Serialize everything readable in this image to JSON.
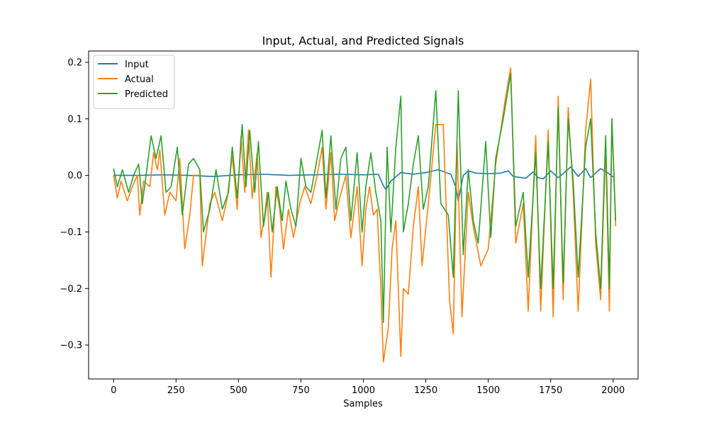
{
  "chart_data": {
    "type": "line",
    "title": "Input, Actual, and Predicted Signals",
    "xlabel": "Samples",
    "ylabel": "",
    "xlim": [
      -100,
      2100
    ],
    "ylim": [
      -0.36,
      0.22
    ],
    "xticks": [
      0,
      250,
      500,
      750,
      1000,
      1250,
      1500,
      1750,
      2000
    ],
    "yticks": [
      -0.3,
      -0.2,
      -0.1,
      0.0,
      0.1,
      0.2
    ],
    "grid": false,
    "legend": "top-left",
    "series": [
      {
        "name": "Input",
        "color": "#1f77b4",
        "points": [
          [
            0,
            0.0
          ],
          [
            100,
            0.0
          ],
          [
            200,
            0.001
          ],
          [
            300,
            0.0
          ],
          [
            400,
            -0.002
          ],
          [
            500,
            0.001
          ],
          [
            600,
            0.002
          ],
          [
            700,
            0.0
          ],
          [
            800,
            0.001
          ],
          [
            900,
            0.002
          ],
          [
            1000,
            0.001
          ],
          [
            1060,
            0.002
          ],
          [
            1080,
            -0.018
          ],
          [
            1090,
            -0.025
          ],
          [
            1110,
            -0.01
          ],
          [
            1150,
            0.005
          ],
          [
            1200,
            0.002
          ],
          [
            1250,
            0.005
          ],
          [
            1300,
            0.01
          ],
          [
            1350,
            0.002
          ],
          [
            1370,
            -0.02
          ],
          [
            1380,
            -0.045
          ],
          [
            1400,
            0.0
          ],
          [
            1420,
            0.008
          ],
          [
            1450,
            0.004
          ],
          [
            1500,
            0.003
          ],
          [
            1550,
            0.004
          ],
          [
            1580,
            0.008
          ],
          [
            1600,
            -0.002
          ],
          [
            1650,
            -0.005
          ],
          [
            1680,
            0.006
          ],
          [
            1700,
            -0.004
          ],
          [
            1720,
            -0.006
          ],
          [
            1750,
            0.008
          ],
          [
            1780,
            -0.004
          ],
          [
            1800,
            0.003
          ],
          [
            1830,
            0.015
          ],
          [
            1860,
            -0.002
          ],
          [
            1890,
            0.012
          ],
          [
            1910,
            -0.004
          ],
          [
            1950,
            0.012
          ],
          [
            1980,
            0.004
          ],
          [
            2000,
            -0.003
          ]
        ]
      },
      {
        "name": "Actual",
        "color": "#ff7f0e",
        "points": [
          [
            0,
            0.0
          ],
          [
            15,
            -0.04
          ],
          [
            30,
            -0.01
          ],
          [
            55,
            -0.045
          ],
          [
            75,
            -0.02
          ],
          [
            95,
            0.0
          ],
          [
            105,
            -0.07
          ],
          [
            120,
            -0.01
          ],
          [
            145,
            -0.02
          ],
          [
            160,
            0.04
          ],
          [
            175,
            0.01
          ],
          [
            185,
            0.045
          ],
          [
            205,
            -0.07
          ],
          [
            225,
            -0.03
          ],
          [
            250,
            -0.045
          ],
          [
            265,
            0.03
          ],
          [
            285,
            -0.13
          ],
          [
            305,
            -0.07
          ],
          [
            320,
            0.0
          ],
          [
            345,
            0.0
          ],
          [
            355,
            -0.16
          ],
          [
            385,
            -0.05
          ],
          [
            405,
            -0.03
          ],
          [
            435,
            -0.08
          ],
          [
            455,
            -0.04
          ],
          [
            475,
            0.035
          ],
          [
            495,
            -0.06
          ],
          [
            510,
            0.07
          ],
          [
            525,
            -0.03
          ],
          [
            540,
            0.08
          ],
          [
            555,
            -0.04
          ],
          [
            575,
            0.04
          ],
          [
            590,
            -0.11
          ],
          [
            605,
            -0.07
          ],
          [
            615,
            -0.03
          ],
          [
            630,
            -0.18
          ],
          [
            650,
            -0.02
          ],
          [
            665,
            -0.06
          ],
          [
            680,
            -0.13
          ],
          [
            700,
            -0.06
          ],
          [
            720,
            -0.11
          ],
          [
            745,
            -0.05
          ],
          [
            765,
            -0.02
          ],
          [
            790,
            -0.05
          ],
          [
            815,
            0.0
          ],
          [
            835,
            0.05
          ],
          [
            850,
            -0.06
          ],
          [
            870,
            0.04
          ],
          [
            885,
            -0.08
          ],
          [
            905,
            -0.04
          ],
          [
            930,
            0.0
          ],
          [
            950,
            -0.11
          ],
          [
            975,
            -0.02
          ],
          [
            995,
            -0.16
          ],
          [
            1010,
            -0.06
          ],
          [
            1025,
            -0.02
          ],
          [
            1040,
            -0.07
          ],
          [
            1055,
            -0.06
          ],
          [
            1070,
            -0.2
          ],
          [
            1080,
            -0.33
          ],
          [
            1100,
            -0.27
          ],
          [
            1115,
            -0.13
          ],
          [
            1130,
            -0.08
          ],
          [
            1150,
            -0.32
          ],
          [
            1160,
            -0.2
          ],
          [
            1180,
            -0.21
          ],
          [
            1200,
            -0.09
          ],
          [
            1220,
            -0.02
          ],
          [
            1235,
            -0.16
          ],
          [
            1260,
            -0.05
          ],
          [
            1290,
            0.09
          ],
          [
            1320,
            0.09
          ],
          [
            1345,
            -0.22
          ],
          [
            1360,
            -0.28
          ],
          [
            1375,
            0.06
          ],
          [
            1395,
            -0.25
          ],
          [
            1420,
            -0.03
          ],
          [
            1440,
            -0.09
          ],
          [
            1470,
            -0.16
          ],
          [
            1500,
            -0.13
          ],
          [
            1530,
            0.02
          ],
          [
            1570,
            0.14
          ],
          [
            1590,
            0.19
          ],
          [
            1610,
            -0.12
          ],
          [
            1640,
            -0.05
          ],
          [
            1660,
            -0.24
          ],
          [
            1690,
            0.07
          ],
          [
            1710,
            -0.24
          ],
          [
            1740,
            0.08
          ],
          [
            1760,
            -0.25
          ],
          [
            1780,
            0.14
          ],
          [
            1800,
            -0.22
          ],
          [
            1820,
            0.12
          ],
          [
            1840,
            -0.03
          ],
          [
            1860,
            -0.24
          ],
          [
            1890,
            0.08
          ],
          [
            1910,
            0.17
          ],
          [
            1930,
            -0.12
          ],
          [
            1950,
            -0.22
          ],
          [
            1970,
            0.05
          ],
          [
            1985,
            -0.24
          ],
          [
            1995,
            0.1
          ],
          [
            2010,
            -0.09
          ]
        ]
      },
      {
        "name": "Predicted",
        "color": "#2ca02c",
        "points": [
          [
            0,
            0.012
          ],
          [
            15,
            -0.02
          ],
          [
            35,
            0.01
          ],
          [
            60,
            -0.03
          ],
          [
            80,
            0.0
          ],
          [
            100,
            0.02
          ],
          [
            115,
            -0.05
          ],
          [
            130,
            0.0
          ],
          [
            150,
            0.07
          ],
          [
            170,
            0.03
          ],
          [
            190,
            0.07
          ],
          [
            210,
            -0.03
          ],
          [
            230,
            -0.02
          ],
          [
            255,
            0.05
          ],
          [
            275,
            -0.07
          ],
          [
            300,
            0.02
          ],
          [
            320,
            0.03
          ],
          [
            345,
            0.01
          ],
          [
            360,
            -0.1
          ],
          [
            385,
            -0.06
          ],
          [
            410,
            0.01
          ],
          [
            435,
            -0.06
          ],
          [
            460,
            -0.03
          ],
          [
            475,
            0.05
          ],
          [
            495,
            -0.04
          ],
          [
            515,
            0.09
          ],
          [
            530,
            -0.02
          ],
          [
            545,
            0.08
          ],
          [
            565,
            -0.03
          ],
          [
            580,
            0.06
          ],
          [
            600,
            -0.09
          ],
          [
            620,
            -0.03
          ],
          [
            635,
            -0.1
          ],
          [
            655,
            -0.02
          ],
          [
            675,
            -0.08
          ],
          [
            690,
            -0.01
          ],
          [
            710,
            -0.06
          ],
          [
            730,
            -0.09
          ],
          [
            750,
            0.03
          ],
          [
            770,
            -0.02
          ],
          [
            790,
            -0.03
          ],
          [
            815,
            0.03
          ],
          [
            835,
            0.08
          ],
          [
            850,
            -0.04
          ],
          [
            870,
            0.07
          ],
          [
            890,
            -0.06
          ],
          [
            910,
            0.03
          ],
          [
            930,
            0.05
          ],
          [
            950,
            -0.08
          ],
          [
            975,
            0.04
          ],
          [
            995,
            -0.1
          ],
          [
            1010,
            -0.02
          ],
          [
            1030,
            0.04
          ],
          [
            1050,
            -0.03
          ],
          [
            1070,
            -0.08
          ],
          [
            1080,
            -0.26
          ],
          [
            1095,
            0.05
          ],
          [
            1110,
            -0.1
          ],
          [
            1130,
            0.05
          ],
          [
            1150,
            0.14
          ],
          [
            1160,
            -0.1
          ],
          [
            1180,
            -0.05
          ],
          [
            1200,
            0.02
          ],
          [
            1220,
            0.07
          ],
          [
            1240,
            -0.06
          ],
          [
            1260,
            -0.02
          ],
          [
            1290,
            0.15
          ],
          [
            1310,
            -0.05
          ],
          [
            1340,
            -0.07
          ],
          [
            1360,
            -0.18
          ],
          [
            1380,
            0.15
          ],
          [
            1400,
            -0.14
          ],
          [
            1420,
            0.01
          ],
          [
            1440,
            -0.08
          ],
          [
            1460,
            -0.12
          ],
          [
            1490,
            0.06
          ],
          [
            1510,
            -0.11
          ],
          [
            1530,
            0.03
          ],
          [
            1560,
            0.1
          ],
          [
            1590,
            0.18
          ],
          [
            1610,
            -0.09
          ],
          [
            1640,
            -0.03
          ],
          [
            1660,
            -0.18
          ],
          [
            1690,
            0.04
          ],
          [
            1710,
            -0.2
          ],
          [
            1740,
            0.06
          ],
          [
            1760,
            -0.2
          ],
          [
            1780,
            0.12
          ],
          [
            1800,
            -0.19
          ],
          [
            1820,
            0.1
          ],
          [
            1840,
            -0.01
          ],
          [
            1860,
            -0.18
          ],
          [
            1890,
            0.05
          ],
          [
            1910,
            0.1
          ],
          [
            1930,
            -0.1
          ],
          [
            1950,
            -0.2
          ],
          [
            1970,
            0.07
          ],
          [
            1985,
            -0.2
          ],
          [
            1995,
            0.1
          ],
          [
            2010,
            -0.08
          ]
        ]
      }
    ]
  }
}
